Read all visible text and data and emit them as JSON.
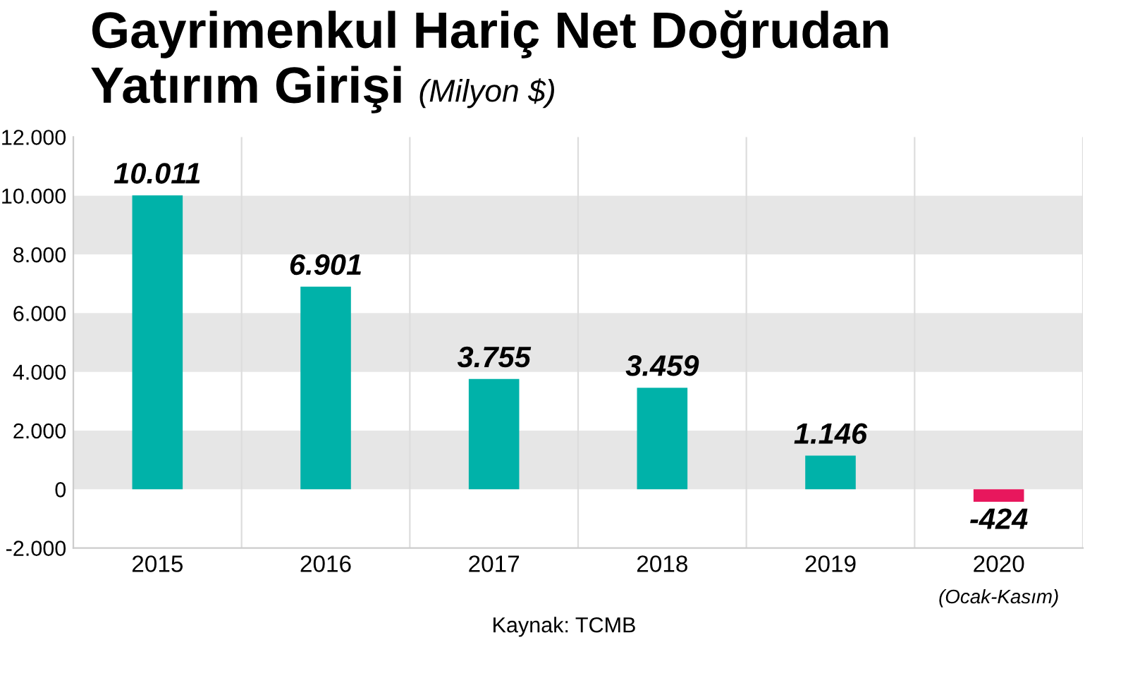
{
  "chart_data": {
    "type": "bar",
    "title": "Gayrimenkul Hariç Net Doğrudan\nYatırım Girişi",
    "subtitle": "(Milyon $)",
    "categories": [
      "2015",
      "2016",
      "2017",
      "2018",
      "2019",
      "2020"
    ],
    "values": [
      10011,
      6901,
      3755,
      3459,
      1146,
      -424
    ],
    "colors": [
      "#00b2a9",
      "#00b2a9",
      "#00b2a9",
      "#00b2a9",
      "#00b2a9",
      "#e8175d"
    ],
    "value_labels": [
      "10.011",
      "6.901",
      "3.755",
      "3.459",
      "1.146",
      "-424"
    ],
    "ylim": [
      -2000,
      12000
    ],
    "yticks": [
      {
        "value": -2000,
        "label": "-2.000"
      },
      {
        "value": 0,
        "label": "0"
      },
      {
        "value": 2000,
        "label": "2.000"
      },
      {
        "value": 4000,
        "label": "4.000"
      },
      {
        "value": 6000,
        "label": "6.000"
      },
      {
        "value": 8000,
        "label": "8.000"
      },
      {
        "value": 10000,
        "label": "10.000"
      },
      {
        "value": 12000,
        "label": "12.000"
      }
    ],
    "bands": [
      {
        "axis": "y",
        "from": 0,
        "to": 2000,
        "color": "#e6e6e6"
      },
      {
        "axis": "y",
        "from": 4000,
        "to": 6000,
        "color": "#e6e6e6"
      },
      {
        "axis": "y",
        "from": 8000,
        "to": 10000,
        "color": "#e6e6e6"
      }
    ],
    "grid": false,
    "annotations": [
      "(Ocak-Kasım)",
      "Kaynak: TCMB"
    ]
  }
}
